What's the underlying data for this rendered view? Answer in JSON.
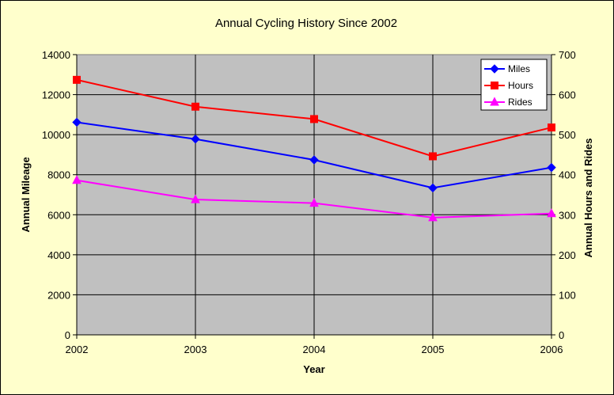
{
  "chart_data": {
    "type": "line",
    "title": "Annual Cycling History Since 2002",
    "xlabel": "Year",
    "ylabel_left": "Annual Mileage",
    "ylabel_right": "Annual Hours and Rides",
    "x": [
      "2002",
      "2003",
      "2004",
      "2005",
      "2006"
    ],
    "ylim_left": [
      0,
      14000
    ],
    "ylim_right": [
      0,
      700
    ],
    "yticks_left": [
      "0",
      "2000",
      "4000",
      "6000",
      "8000",
      "10000",
      "12000",
      "14000"
    ],
    "yticks_right": [
      "0",
      "100",
      "200",
      "300",
      "400",
      "500",
      "600",
      "700"
    ],
    "grid": true,
    "legend_position": "top-right",
    "series": [
      {
        "name": "Miles",
        "axis": "left",
        "color": "#0000ff",
        "marker": "diamond",
        "values": [
          10620,
          9780,
          8740,
          7340,
          8360
        ]
      },
      {
        "name": "Hours",
        "axis": "right",
        "color": "#ff0000",
        "marker": "square",
        "values": [
          637,
          570,
          539,
          446,
          518
        ]
      },
      {
        "name": "Rides",
        "axis": "right",
        "color": "#ff00ff",
        "marker": "triangle",
        "values": [
          386,
          338,
          329,
          293,
          303
        ]
      }
    ]
  }
}
